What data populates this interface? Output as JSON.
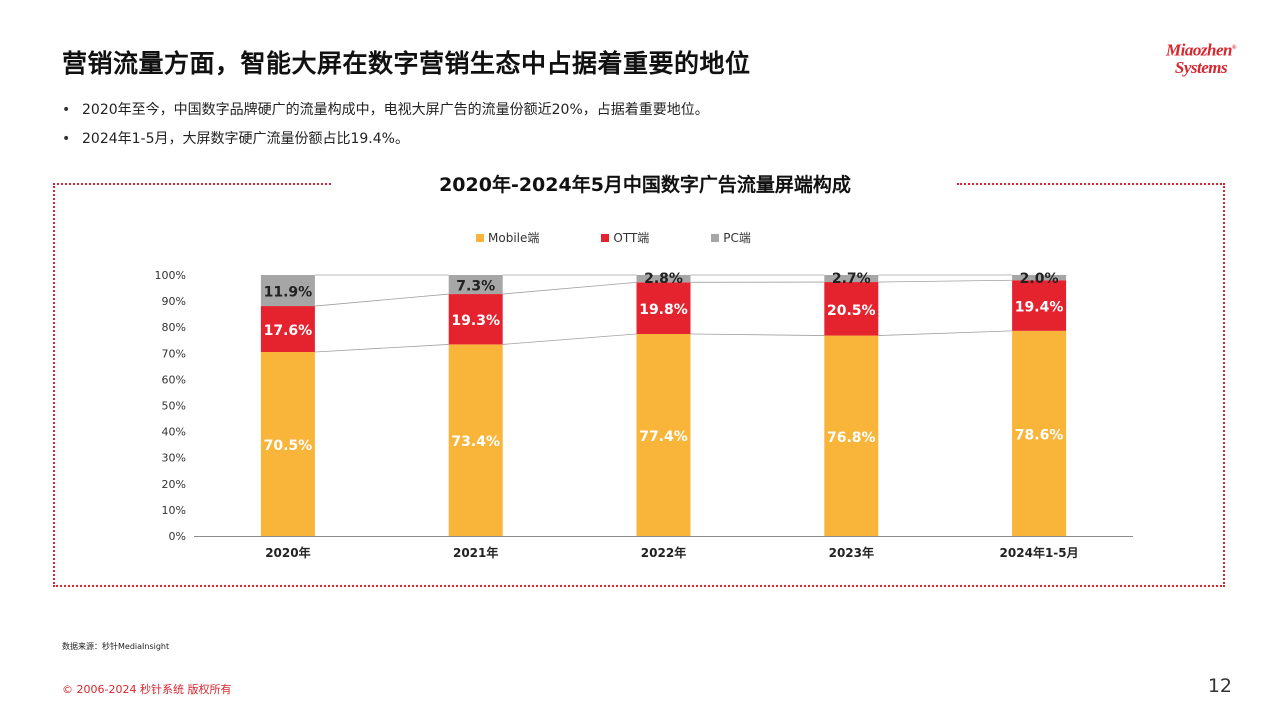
{
  "header": {
    "title": "营销流量方面，智能大屏在数字营销生态中占据着重要的地位",
    "logo_line1": "Miaozhen",
    "logo_mark": "®",
    "logo_line2": "Systems"
  },
  "bullets": [
    "2020年至今，中国数字品牌硬广的流量构成中，电视大屏广告的流量份额近20%，占据着重要地位。",
    "2024年1-5月，大屏数字硬广流量份额占比19.4%。"
  ],
  "chart_data": {
    "type": "bar",
    "stacked": true,
    "title": "2020年-2024年5月中国数字广告流量屏端构成",
    "categories": [
      "2020年",
      "2021年",
      "2022年",
      "2023年",
      "2024年1-5月"
    ],
    "series": [
      {
        "name": "Mobile端",
        "color": "#F9B43A",
        "values": [
          70.5,
          73.4,
          77.4,
          76.8,
          78.6
        ],
        "labels": [
          "70.5%",
          "73.4%",
          "77.4%",
          "76.8%",
          "78.6%"
        ]
      },
      {
        "name": "OTT端",
        "color": "#E5232F",
        "values": [
          17.6,
          19.3,
          19.8,
          20.5,
          19.4
        ],
        "labels": [
          "17.6%",
          "19.3%",
          "19.8%",
          "20.5%",
          "19.4%"
        ]
      },
      {
        "name": "PC端",
        "color": "#A6A6A6",
        "values": [
          11.9,
          7.3,
          2.8,
          2.7,
          2.0
        ],
        "labels": [
          "11.9%",
          "7.3%",
          "2.8%",
          "2.7%",
          "2.0%"
        ]
      }
    ],
    "yticks": [
      "0%",
      "10%",
      "20%",
      "30%",
      "40%",
      "50%",
      "60%",
      "70%",
      "80%",
      "90%",
      "100%"
    ],
    "ylim": [
      0,
      100
    ],
    "legend_position": "top",
    "grid": false
  },
  "footer": {
    "source": "数据来源：秒针MediaInsight",
    "copyright": "© 2006-2024 秒针系统 版权所有",
    "page_number": "12"
  }
}
